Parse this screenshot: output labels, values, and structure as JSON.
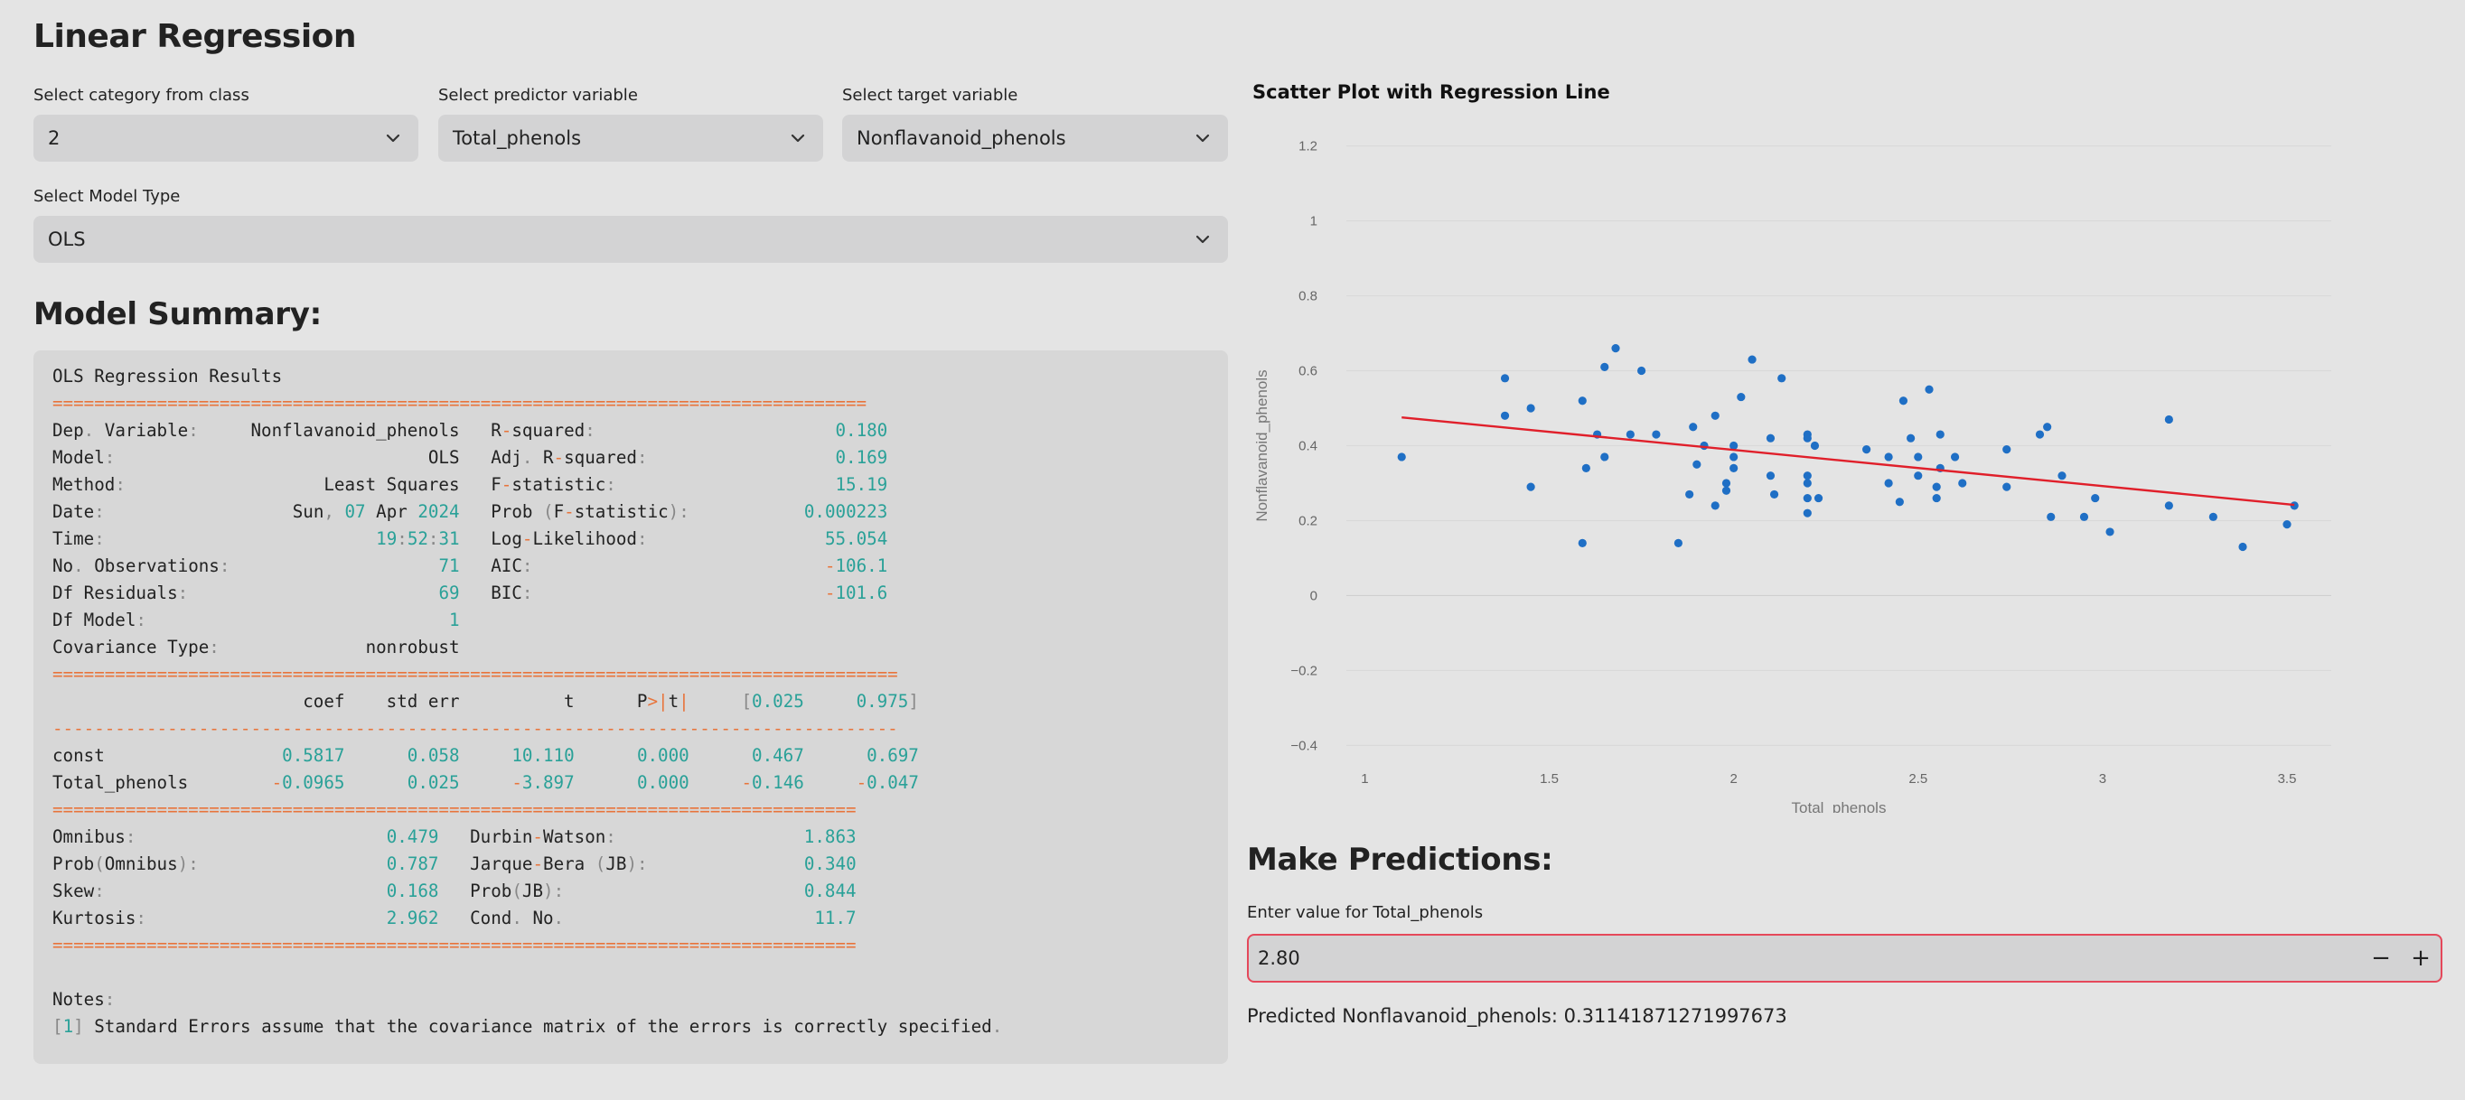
{
  "app": {
    "title": "Linear Regression"
  },
  "controls": {
    "category": {
      "label": "Select category from class",
      "value": "2"
    },
    "predictor": {
      "label": "Select predictor variable",
      "value": "Total_phenols"
    },
    "target": {
      "label": "Select target variable",
      "value": "Nonflavanoid_phenols"
    },
    "model_type": {
      "label": "Select Model Type",
      "value": "OLS"
    }
  },
  "summary": {
    "heading": "Model Summary:",
    "title": "OLS Regression Results",
    "sep_top": "==============================================================================",
    "sep_mid": "---------------------------------------------------------------------------------",
    "sep_bottom": "=============================================================================",
    "left_stats": [
      [
        "Dep. Variable:",
        "Nonflavanoid_phenols"
      ],
      [
        "Model:",
        "OLS"
      ],
      [
        "Method:",
        "Least Squares"
      ],
      [
        "Date:",
        "Sun, 07 Apr 2024"
      ],
      [
        "Time:",
        "19:52:31"
      ],
      [
        "No. Observations:",
        "71"
      ],
      [
        "Df Residuals:",
        "69"
      ],
      [
        "Df Model:",
        "1"
      ],
      [
        "Covariance Type:",
        "nonrobust"
      ]
    ],
    "right_stats": [
      [
        "R-squared:",
        "0.180"
      ],
      [
        "Adj. R-squared:",
        "0.169"
      ],
      [
        "F-statistic:",
        "15.19"
      ],
      [
        "Prob (F-statistic):",
        "0.000223"
      ],
      [
        "Log-Likelihood:",
        "55.054"
      ],
      [
        "AIC:",
        "-106.1"
      ],
      [
        "BIC:",
        "-101.6"
      ]
    ],
    "coef_header": [
      "coef",
      "std err",
      "t",
      "P>|t|",
      "[0.025",
      "0.975]"
    ],
    "coef_rows": [
      [
        "const",
        "0.5817",
        "0.058",
        "10.110",
        "0.000",
        "0.467",
        "0.697"
      ],
      [
        "Total_phenols",
        "-0.0965",
        "0.025",
        "-3.897",
        "0.000",
        "-0.146",
        "-0.047"
      ]
    ],
    "diag_rows": [
      [
        "Omnibus:",
        "0.479",
        "Durbin-Watson:",
        "1.863"
      ],
      [
        "Prob(Omnibus):",
        "0.787",
        "Jarque-Bera (JB):",
        "0.340"
      ],
      [
        "Skew:",
        "0.168",
        "Prob(JB):",
        "0.844"
      ],
      [
        "Kurtosis:",
        "2.962",
        "Cond. No.",
        "11.7"
      ]
    ],
    "notes_label": "Notes:",
    "note_1": "[1] Standard Errors assume that the covariance matrix of the errors is correctly specified."
  },
  "chart_data": {
    "type": "scatter",
    "title": "Scatter Plot with Regression Line",
    "xlabel": "Total_phenols",
    "ylabel": "Nonflavanoid_phenols",
    "xlim": [
      0.95,
      3.62
    ],
    "ylim": [
      -0.44,
      1.24
    ],
    "xticks": [
      1,
      1.5,
      2,
      2.5,
      3,
      3.5
    ],
    "xtick_labels": [
      "1",
      "1.5",
      "2",
      "2.5",
      "3",
      "3.5"
    ],
    "yticks": [
      -0.4,
      -0.2,
      0,
      0.2,
      0.4,
      0.6,
      0.8,
      1,
      1.2
    ],
    "ytick_labels": [
      "−0.4",
      "−0.2",
      "0",
      "0.2",
      "0.4",
      "0.6",
      "0.8",
      "1",
      "1.2"
    ],
    "points": [
      [
        1.1,
        0.37
      ],
      [
        1.38,
        0.58
      ],
      [
        1.38,
        0.48
      ],
      [
        1.45,
        0.5
      ],
      [
        1.45,
        0.29
      ],
      [
        1.59,
        0.52
      ],
      [
        1.59,
        0.14
      ],
      [
        1.6,
        0.34
      ],
      [
        1.63,
        0.43
      ],
      [
        1.65,
        0.61
      ],
      [
        1.65,
        0.37
      ],
      [
        1.68,
        0.66
      ],
      [
        1.72,
        0.43
      ],
      [
        1.75,
        0.6
      ],
      [
        1.79,
        0.43
      ],
      [
        1.85,
        0.14
      ],
      [
        1.88,
        0.27
      ],
      [
        1.89,
        0.45
      ],
      [
        1.9,
        0.35
      ],
      [
        1.92,
        0.4
      ],
      [
        1.95,
        0.24
      ],
      [
        1.95,
        0.48
      ],
      [
        1.98,
        0.28
      ],
      [
        1.98,
        0.3
      ],
      [
        2.0,
        0.4
      ],
      [
        2.0,
        0.34
      ],
      [
        2.0,
        0.37
      ],
      [
        2.02,
        0.53
      ],
      [
        2.05,
        0.63
      ],
      [
        2.1,
        0.42
      ],
      [
        2.1,
        0.32
      ],
      [
        2.11,
        0.27
      ],
      [
        2.13,
        0.58
      ],
      [
        2.2,
        0.43
      ],
      [
        2.2,
        0.42
      ],
      [
        2.2,
        0.32
      ],
      [
        2.2,
        0.3
      ],
      [
        2.2,
        0.26
      ],
      [
        2.2,
        0.22
      ],
      [
        2.22,
        0.4
      ],
      [
        2.23,
        0.26
      ],
      [
        2.36,
        0.39
      ],
      [
        2.42,
        0.3
      ],
      [
        2.42,
        0.37
      ],
      [
        2.45,
        0.25
      ],
      [
        2.46,
        0.52
      ],
      [
        2.48,
        0.42
      ],
      [
        2.5,
        0.37
      ],
      [
        2.5,
        0.32
      ],
      [
        2.53,
        0.55
      ],
      [
        2.55,
        0.29
      ],
      [
        2.55,
        0.26
      ],
      [
        2.56,
        0.43
      ],
      [
        2.56,
        0.34
      ],
      [
        2.6,
        0.37
      ],
      [
        2.62,
        0.3
      ],
      [
        2.74,
        0.39
      ],
      [
        2.74,
        0.29
      ],
      [
        2.83,
        0.43
      ],
      [
        2.85,
        0.45
      ],
      [
        2.86,
        0.21
      ],
      [
        2.89,
        0.32
      ],
      [
        2.95,
        0.21
      ],
      [
        2.98,
        0.26
      ],
      [
        3.02,
        0.17
      ],
      [
        3.18,
        0.47
      ],
      [
        3.18,
        0.24
      ],
      [
        3.3,
        0.21
      ],
      [
        3.38,
        0.13
      ],
      [
        3.5,
        0.19
      ],
      [
        3.52,
        0.24
      ]
    ],
    "regression": {
      "intercept": 0.5817,
      "slope": -0.0965,
      "x_range": [
        1.1,
        3.52
      ]
    },
    "point_color": "#1f6fc5",
    "line_color": "#e01f2a"
  },
  "predict": {
    "heading": "Make Predictions:",
    "input_label": "Enter value for Total_phenols",
    "input_value": "2.80",
    "minus": "−",
    "plus": "+",
    "result": "Predicted Nonflavanoid_phenols: 0.31141871271997673"
  }
}
